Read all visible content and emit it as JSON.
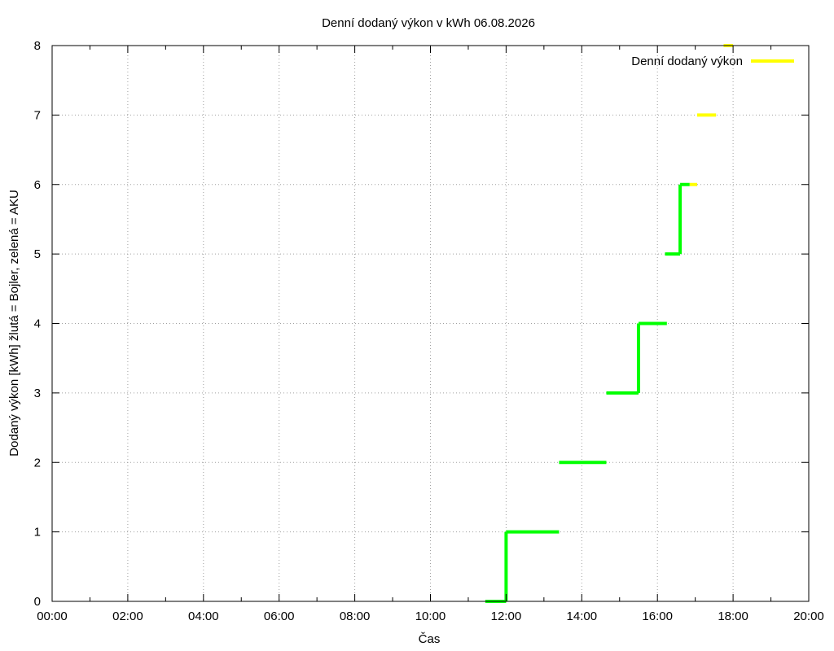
{
  "chart_data": {
    "type": "line",
    "title": "Denní dodaný výkon v kWh 06.08.2026",
    "xlabel": "Čas",
    "ylabel": "Dodaný výkon [kWh]  žlutá = Bojler, zelená = AKU",
    "xlim": [
      0,
      20
    ],
    "ylim": [
      0,
      8
    ],
    "x_ticks": [
      "00:00",
      "02:00",
      "04:00",
      "06:00",
      "08:00",
      "10:00",
      "12:00",
      "14:00",
      "16:00",
      "18:00",
      "20:00"
    ],
    "y_ticks": [
      "0",
      "1",
      "2",
      "3",
      "4",
      "5",
      "6",
      "7",
      "8"
    ],
    "grid": true,
    "legend_position": "top-right",
    "series": [
      {
        "name": "Denní dodaný výkon",
        "color": "#ffff00",
        "x": [
          17.55,
          17.75,
          17.75,
          18.0
        ],
        "y": [
          7,
          7,
          8,
          8
        ],
        "segments": [
          {
            "x": [
              16.85,
              17.05
            ],
            "y": [
              6,
              6
            ]
          },
          {
            "x": [
              17.05,
              17.55
            ],
            "y": [
              7,
              7
            ]
          },
          {
            "x": [
              17.75,
              18.0
            ],
            "y": [
              8,
              8
            ]
          }
        ]
      },
      {
        "color": "#00ff00",
        "segments": [
          {
            "x": [
              11.45,
              12.0
            ],
            "y": [
              0,
              0
            ]
          },
          {
            "x": [
              12.0,
              12.0
            ],
            "y": [
              0,
              1
            ]
          },
          {
            "x": [
              12.0,
              13.4
            ],
            "y": [
              1,
              1
            ]
          },
          {
            "x": [
              13.4,
              14.65
            ],
            "y": [
              2,
              2
            ]
          },
          {
            "x": [
              14.65,
              15.5
            ],
            "y": [
              3,
              3
            ]
          },
          {
            "x": [
              15.5,
              15.5
            ],
            "y": [
              3,
              4
            ]
          },
          {
            "x": [
              15.5,
              16.25
            ],
            "y": [
              4,
              4
            ]
          },
          {
            "x": [
              16.2,
              16.6
            ],
            "y": [
              5,
              5
            ]
          },
          {
            "x": [
              16.6,
              16.6
            ],
            "y": [
              5,
              6
            ]
          },
          {
            "x": [
              16.6,
              16.85
            ],
            "y": [
              6,
              6
            ]
          }
        ]
      }
    ]
  }
}
